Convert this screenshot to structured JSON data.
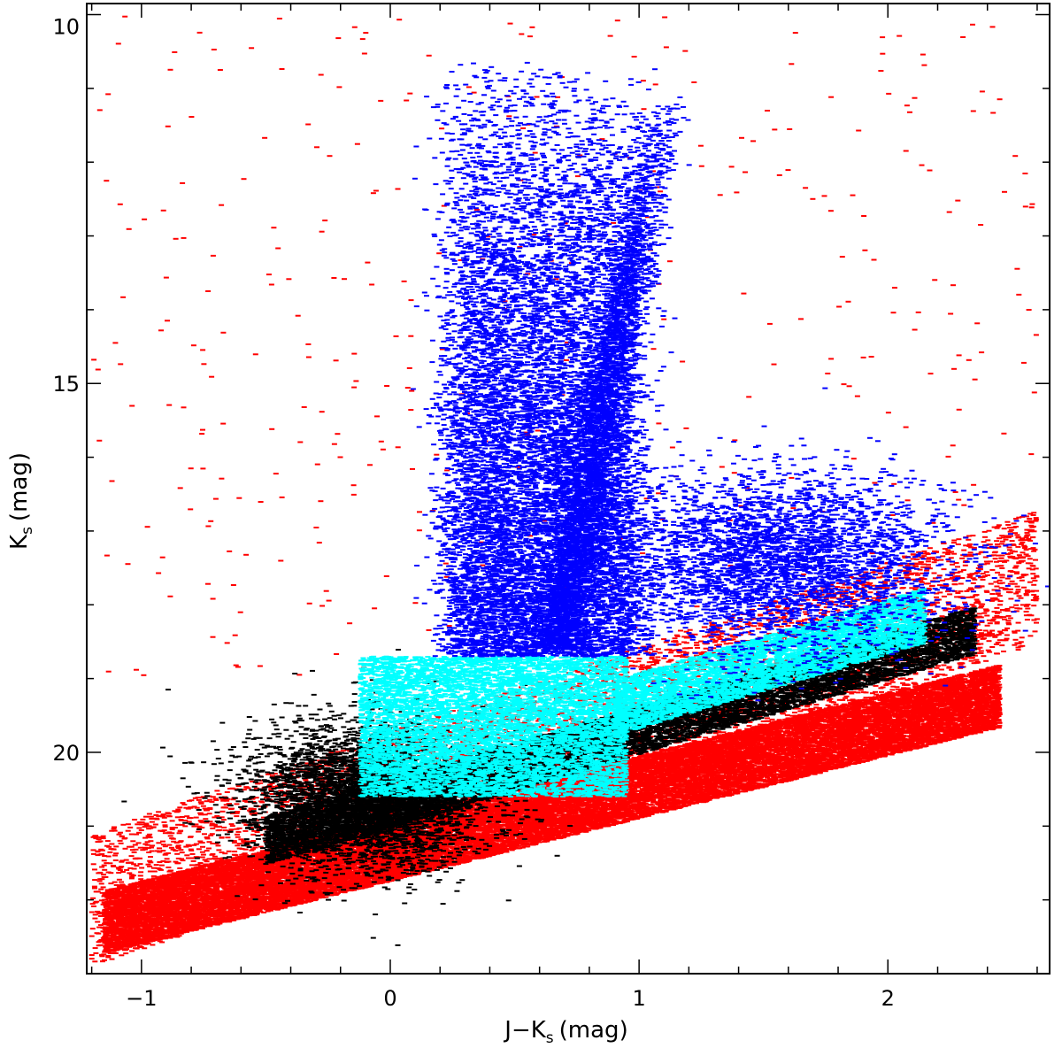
{
  "chart_data": {
    "type": "scatter",
    "title": "",
    "xlabel": "J−K",
    "xlabel_sub": "s",
    "xlabel_unit": "(mag)",
    "ylabel": "K",
    "ylabel_sub": "s",
    "ylabel_unit": "(mag)",
    "xlim": [
      -1.22,
      2.65
    ],
    "ylim": [
      23.0,
      9.85
    ],
    "y_inverted": true,
    "grid": false,
    "legend": "none",
    "x_ticks": [
      {
        "value": -1,
        "label": "−1"
      },
      {
        "value": 0,
        "label": "0"
      },
      {
        "value": 1,
        "label": "1"
      },
      {
        "value": 2,
        "label": "2"
      }
    ],
    "y_ticks": [
      {
        "value": 10,
        "label": "10"
      },
      {
        "value": 15,
        "label": "15"
      },
      {
        "value": 20,
        "label": "20"
      }
    ],
    "series": [
      {
        "color": "#ff0000",
        "point_count": 30000,
        "components": [
          {
            "shape": "band",
            "x_range": [
              -1.15,
              2.45
            ],
            "k_at_xmin": 22.3,
            "k_slope": -0.85,
            "k_width": 0.85,
            "weight": 0.8
          },
          {
            "shape": "band",
            "x_range": [
              -1.2,
              2.6
            ],
            "k_at_xmin": 22.0,
            "k_slope": -1.15,
            "k_width": 1.8,
            "weight": 0.2
          }
        ],
        "sparse_region": {
          "x_range": [
            -1.2,
            2.6
          ],
          "k_range": [
            10.0,
            19.0
          ],
          "count": 420
        }
      },
      {
        "color": "#000000",
        "point_count": 13000,
        "components": [
          {
            "shape": "band",
            "x_range": [
              -0.5,
              2.35
            ],
            "k_at_xmin": 21.2,
            "k_slope": -1.0,
            "k_width": 0.65,
            "weight": 0.7
          },
          {
            "shape": "blob",
            "center": [
              -0.1,
              20.6
            ],
            "sigma": [
              0.25,
              0.5
            ],
            "weight": 0.3
          }
        ]
      },
      {
        "color": "#00ffff",
        "point_count": 11000,
        "components": [
          {
            "shape": "box",
            "x_range": [
              -0.12,
              0.95
            ],
            "k_range": [
              18.7,
              20.6
            ],
            "weight": 0.62
          },
          {
            "shape": "band",
            "x_range": [
              0.9,
              2.15
            ],
            "k_at_xmin": 19.4,
            "k_slope": -1.0,
            "k_width": 0.75,
            "weight": 0.38
          }
        ]
      },
      {
        "color": "#0000ff",
        "point_count": 18000,
        "components": [
          {
            "shape": "column",
            "x_range": [
              0.25,
              0.98
            ],
            "k_range": [
              10.6,
              18.7
            ],
            "weight": 0.62
          },
          {
            "shape": "rgb",
            "x_at_kmin": 1.1,
            "x_at_kmax": 0.66,
            "k_range": [
              11.2,
              18.6
            ],
            "weight": 0.18
          },
          {
            "shape": "blob",
            "center": [
              1.55,
              17.4
            ],
            "sigma": [
              0.35,
              0.6
            ],
            "weight": 0.2
          }
        ]
      }
    ]
  }
}
